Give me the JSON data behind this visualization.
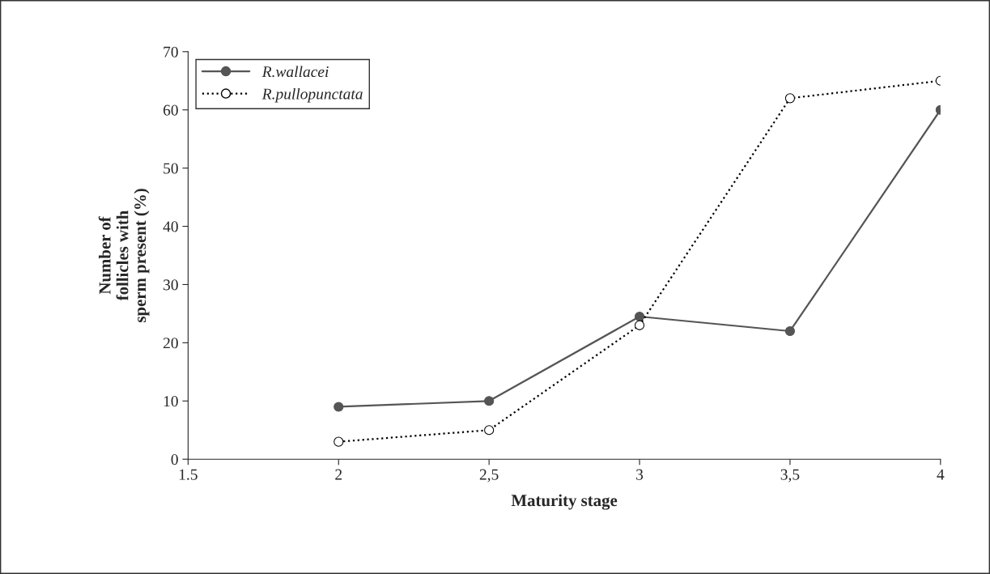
{
  "chart_data": {
    "type": "line",
    "xlabel": "Maturity stage",
    "ylabel": "Number of\nfollicles with\nsperm present (%)",
    "x": [
      2,
      2.5,
      3,
      3.5,
      4
    ],
    "series": [
      {
        "name": "R.wallacei",
        "color": "#555555",
        "values": [
          9,
          10,
          24.5,
          22,
          60
        ],
        "marker": "circle",
        "line_style": "solid"
      },
      {
        "name": "R.pullopunctata",
        "color": "#000000",
        "values": [
          3,
          5,
          23,
          62,
          65
        ],
        "marker": "circle",
        "line_style": "dotted"
      }
    ],
    "xlim": [
      1.5,
      4
    ],
    "xticks": [
      1.5,
      2,
      {
        "value": 2.5,
        "label": "2,5"
      },
      3,
      {
        "value": 3.5,
        "label": "3,5"
      },
      4
    ],
    "ylim": [
      0,
      70
    ],
    "yticks": [
      0,
      10,
      20,
      30,
      40,
      50,
      60,
      70
    ],
    "grid": false,
    "legend": "top left"
  }
}
